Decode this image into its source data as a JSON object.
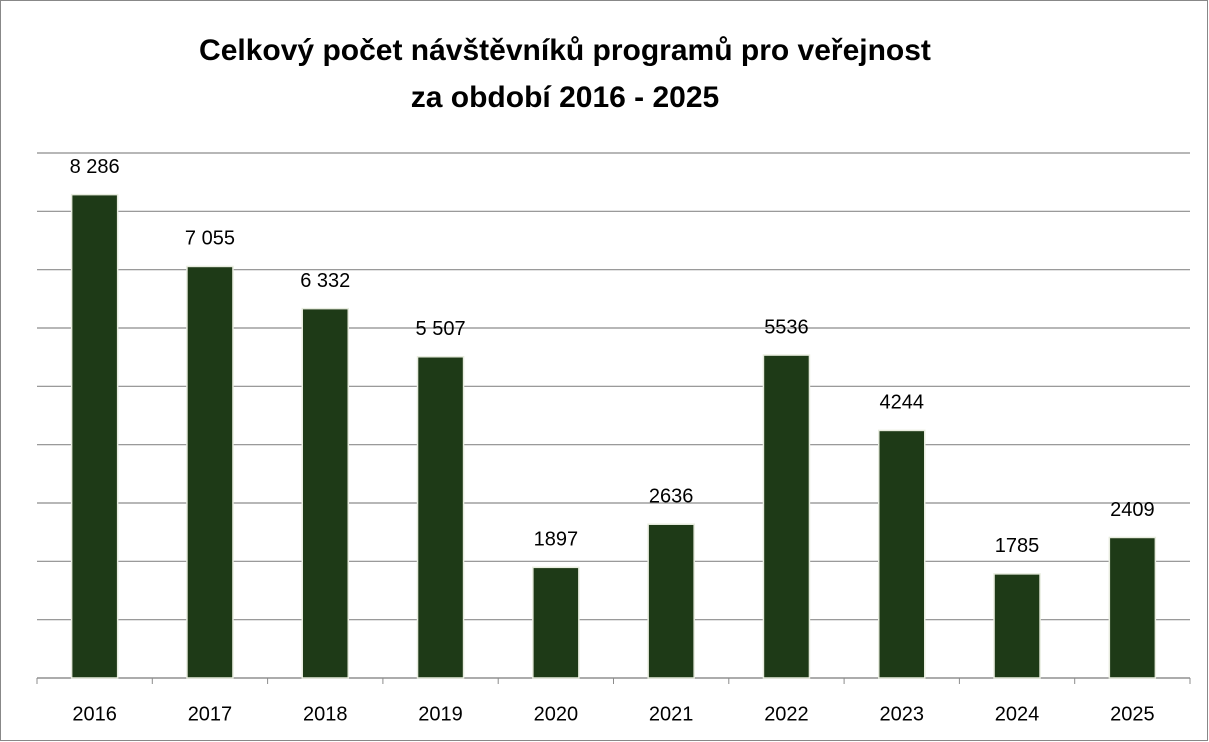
{
  "chart_data": {
    "type": "bar",
    "title": "Celkový počet návštěvníků programů pro veřejnost",
    "subtitle": "za období 2016 - 2025",
    "categories": [
      "2016",
      "2017",
      "2018",
      "2019",
      "2020",
      "2021",
      "2022",
      "2023",
      "2024",
      "2025"
    ],
    "values": [
      8286,
      7055,
      6332,
      5507,
      1897,
      2636,
      5536,
      4244,
      1785,
      2409
    ],
    "value_labels": [
      "8 286",
      "7 055",
      "6 332",
      "5 507",
      "1897",
      "2636",
      "5536",
      "4244",
      "1785",
      "2409"
    ],
    "color": "#1e3a17",
    "ylim": [
      0,
      9000
    ],
    "yticks": [
      0,
      1000,
      2000,
      3000,
      4000,
      5000,
      6000,
      7000,
      8000,
      9000
    ],
    "grid": true
  }
}
